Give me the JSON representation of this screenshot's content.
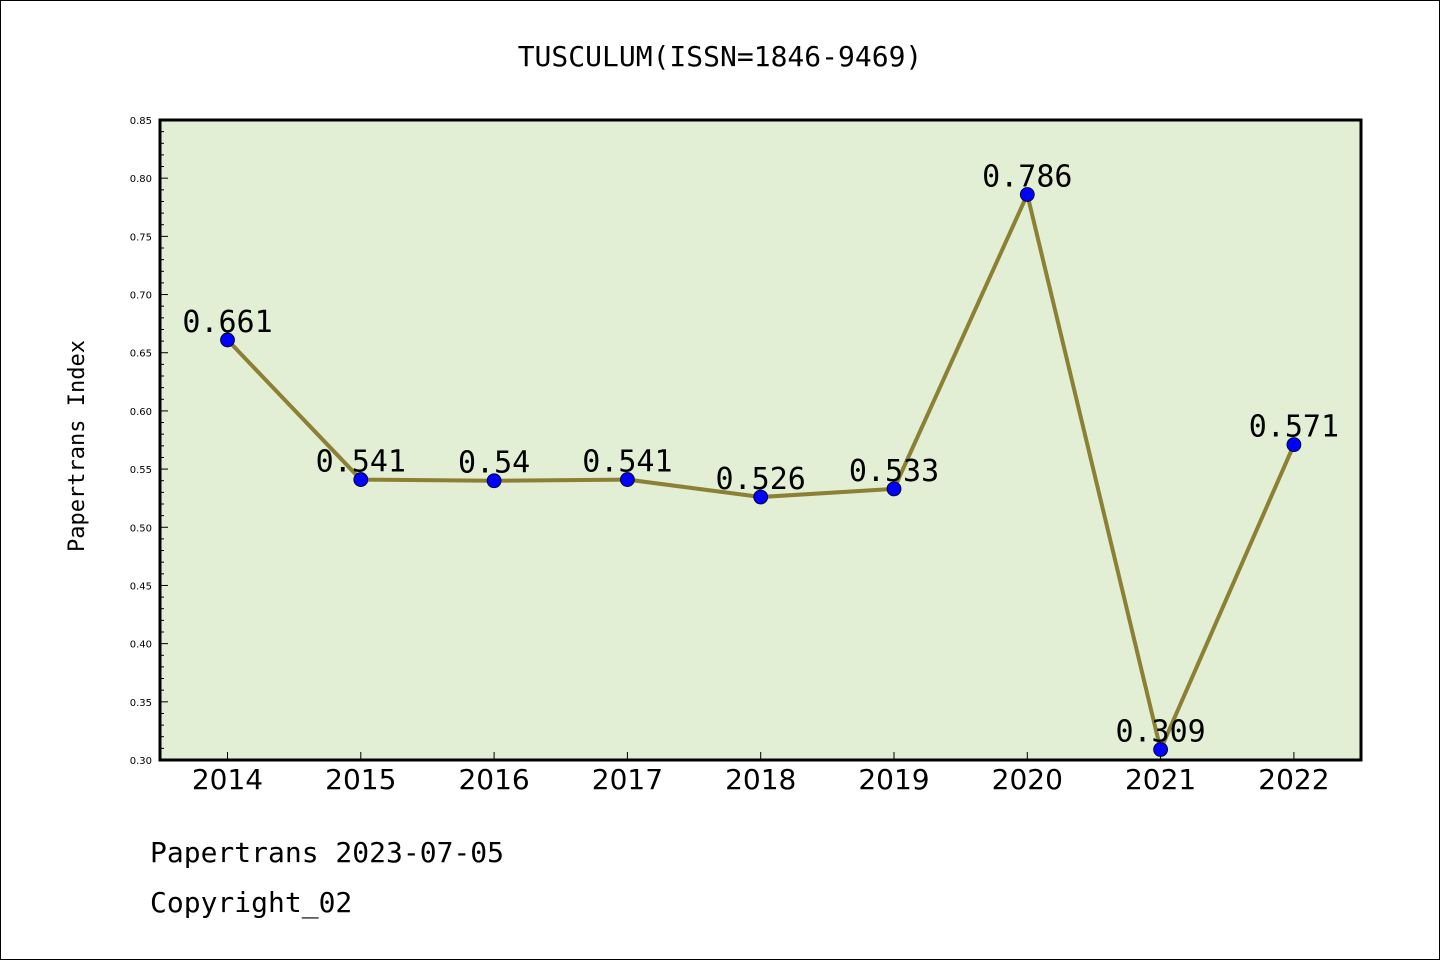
{
  "footer": {
    "line1": "Papertrans 2023-07-05",
    "line2": "Copyright_02"
  },
  "colors": {
    "plot_bg": "#e2efd5",
    "line": "#8c8035",
    "marker": "#0000ff"
  },
  "chart_data": {
    "type": "line",
    "title": "TUSCULUM(ISSN=1846-9469)",
    "xlabel": "",
    "ylabel": "Papertrans Index",
    "categories": [
      "2014",
      "2015",
      "2016",
      "2017",
      "2018",
      "2019",
      "2020",
      "2021",
      "2022"
    ],
    "values": [
      0.661,
      0.541,
      0.54,
      0.541,
      0.526,
      0.533,
      0.786,
      0.309,
      0.571
    ],
    "data_labels": [
      "0.661",
      "0.541",
      "0.54",
      "0.541",
      "0.526",
      "0.533",
      "0.786",
      "0.309",
      "0.571"
    ],
    "ylim": [
      0.3,
      0.85
    ],
    "yticks": [
      "0.30",
      "0.35",
      "0.40",
      "0.45",
      "0.50",
      "0.55",
      "0.60",
      "0.65",
      "0.70",
      "0.75",
      "0.80",
      "0.85"
    ],
    "grid": false,
    "legend": "none"
  }
}
